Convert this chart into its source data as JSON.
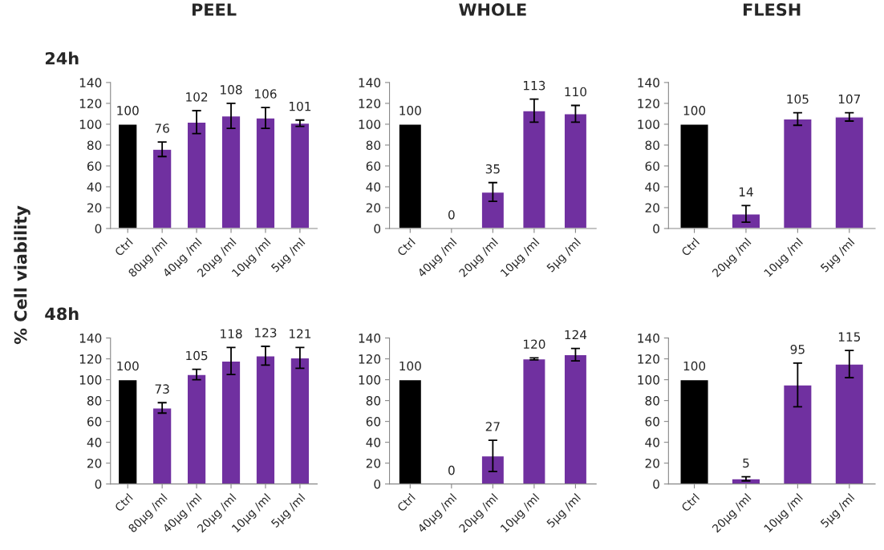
{
  "chart_data": [
    {
      "type": "bar",
      "title": "PEEL",
      "subtitle": "24h",
      "ylabel": "% Cell viability",
      "categories": [
        "Ctrl",
        "80µg /ml",
        "40µg /ml",
        "20µg /ml",
        "10µg /ml",
        "5µg /ml"
      ],
      "values": [
        100,
        76,
        102,
        108,
        106,
        101
      ],
      "errors": [
        null,
        7,
        11,
        12,
        10,
        3
      ],
      "colors": [
        "#000000",
        "#7030a0",
        "#7030a0",
        "#7030a0",
        "#7030a0",
        "#7030a0"
      ],
      "ylim": [
        0,
        140
      ],
      "yticks": [
        0,
        20,
        40,
        60,
        80,
        100,
        120,
        140
      ],
      "data_labels": true,
      "grid": false,
      "legend": false
    },
    {
      "type": "bar",
      "title": "WHOLE",
      "categories": [
        "Ctrl",
        "40µg /ml",
        "20µg /ml",
        "10µg /ml",
        "5µg /ml"
      ],
      "values": [
        100,
        0,
        35,
        113,
        110
      ],
      "errors": [
        null,
        null,
        9,
        11,
        8
      ],
      "colors": [
        "#000000",
        null,
        "#7030a0",
        "#7030a0",
        "#7030a0"
      ],
      "ylim": [
        0,
        140
      ],
      "yticks": [
        0,
        20,
        40,
        60,
        80,
        100,
        120,
        140
      ],
      "data_labels": true,
      "grid": false,
      "legend": false
    },
    {
      "type": "bar",
      "title": "FLESH",
      "categories": [
        "Ctrl",
        "20µg /ml",
        "10µg /ml",
        "5µg /ml"
      ],
      "values": [
        100,
        14,
        105,
        107
      ],
      "errors": [
        null,
        8,
        6,
        4
      ],
      "colors": [
        "#000000",
        "#7030a0",
        "#7030a0",
        "#7030a0"
      ],
      "ylim": [
        0,
        140
      ],
      "yticks": [
        0,
        20,
        40,
        60,
        80,
        100,
        120,
        140
      ],
      "data_labels": true,
      "grid": false,
      "legend": false
    },
    {
      "type": "bar",
      "subtitle": "48h",
      "categories": [
        "Ctrl",
        "80µg /ml",
        "40µg /ml",
        "20µg /ml",
        "10µg /ml",
        "5µg /ml"
      ],
      "values": [
        100,
        73,
        105,
        118,
        123,
        121
      ],
      "errors": [
        null,
        5,
        5,
        13,
        9,
        10
      ],
      "colors": [
        "#000000",
        "#7030a0",
        "#7030a0",
        "#7030a0",
        "#7030a0",
        "#7030a0"
      ],
      "ylim": [
        0,
        140
      ],
      "yticks": [
        0,
        20,
        40,
        60,
        80,
        100,
        120,
        140
      ],
      "data_labels": true,
      "grid": false,
      "legend": false
    },
    {
      "type": "bar",
      "categories": [
        "Ctrl",
        "40µg /ml",
        "20µg /ml",
        "10µg /ml",
        "5µg /ml"
      ],
      "values": [
        100,
        0,
        27,
        120,
        124
      ],
      "errors": [
        null,
        null,
        15,
        1,
        6
      ],
      "colors": [
        "#000000",
        null,
        "#7030a0",
        "#7030a0",
        "#7030a0"
      ],
      "ylim": [
        0,
        140
      ],
      "yticks": [
        0,
        20,
        40,
        60,
        80,
        100,
        120,
        140
      ],
      "data_labels": true,
      "grid": false,
      "legend": false
    },
    {
      "type": "bar",
      "categories": [
        "Ctrl",
        "20µg /ml",
        "10µg /ml",
        "5µg /ml"
      ],
      "values": [
        100,
        5,
        95,
        115
      ],
      "errors": [
        null,
        2,
        21,
        13
      ],
      "colors": [
        "#000000",
        "#7030a0",
        "#7030a0",
        "#7030a0"
      ],
      "ylim": [
        0,
        140
      ],
      "yticks": [
        0,
        20,
        40,
        60,
        80,
        100,
        120,
        140
      ],
      "data_labels": true,
      "grid": false,
      "legend": false
    }
  ]
}
